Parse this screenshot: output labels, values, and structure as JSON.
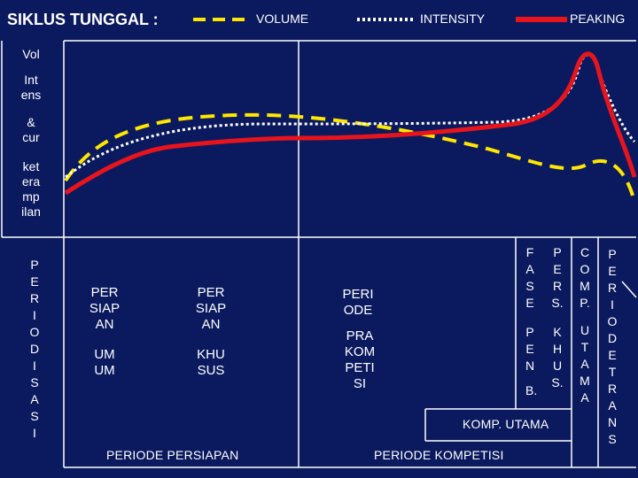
{
  "title": "SIKLUS TUNGGAL :",
  "legend": {
    "volume": "VOLUME",
    "intensity": "INTENSITY",
    "peaking": "PEAKING"
  },
  "colors": {
    "background": "#0b1a5e",
    "volume": "#ffe600",
    "intensity": "#ffffff",
    "peaking": "#e8141c",
    "lines": "#ffffff"
  },
  "left_labels": {
    "vol": "Vol",
    "intensitas": [
      "Int",
      "ens"
    ],
    "and": [
      "&",
      "cur"
    ],
    "keterampilan": [
      "ket",
      "era",
      "mp",
      "ilan"
    ]
  },
  "periodisasi": [
    "P",
    "E",
    "R",
    "I",
    "O",
    "D",
    "I",
    "S",
    "A",
    "S",
    "I"
  ],
  "cells": {
    "persiapan_umum": [
      "PER",
      "SIAP",
      "AN",
      "UM",
      "UM"
    ],
    "persiapan_khusus": [
      "PER",
      "SIAP",
      "AN",
      "KHU",
      "SUS"
    ],
    "periode": [
      "PERI",
      "ODE"
    ],
    "prakompetisi": [
      "PRA",
      "KOM",
      "PETI",
      "SI"
    ],
    "fase": [
      "F",
      "A",
      "S",
      "E"
    ],
    "pen": [
      "P",
      "E",
      "N"
    ],
    "b": "B.",
    "pers": [
      "P",
      "E",
      "R",
      "S."
    ],
    "khus": [
      "K",
      "H",
      "U",
      "S."
    ],
    "comp": [
      "C",
      "O",
      "M",
      "P."
    ],
    "utama": [
      "U",
      "T",
      "A",
      "M",
      "A"
    ],
    "periode_transisi": [
      "P",
      "E",
      "R",
      "I",
      "O",
      "D",
      "E",
      "T",
      "R",
      "A",
      "N",
      "S"
    ]
  },
  "bottom": {
    "komp_utama": "KOMP. UTAMA",
    "periode_persiapan": "PERIODE PERSIAPAN",
    "periode_kompetisi": "PERIODE KOMPETISI"
  }
}
